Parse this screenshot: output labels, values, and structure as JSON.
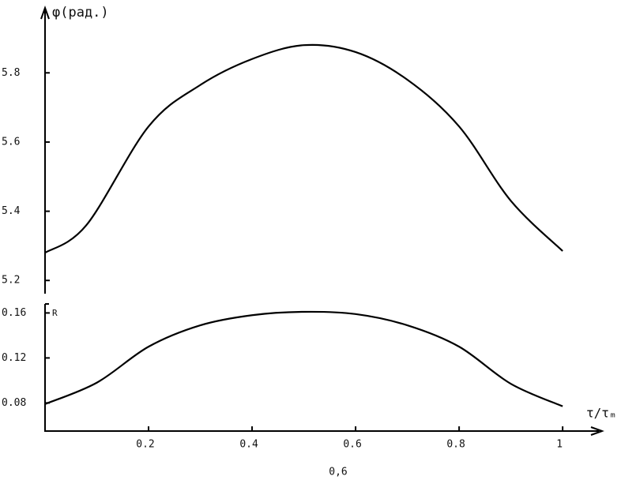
{
  "chart_data": [
    {
      "type": "line",
      "y_label": "φ(рад.)",
      "x": [
        0,
        0.08,
        0.2,
        0.3,
        0.4,
        0.5,
        0.6,
        0.7,
        0.8,
        0.9,
        1.0
      ],
      "values": [
        5.28,
        5.36,
        5.645,
        5.765,
        5.84,
        5.88,
        5.86,
        5.78,
        5.645,
        5.43,
        5.285
      ],
      "xlim": [
        0,
        1.07
      ],
      "ylim": [
        5.18,
        5.99
      ],
      "yticks": [
        5.2,
        5.4,
        5.6,
        5.8
      ],
      "color": "#000000"
    },
    {
      "type": "line",
      "y_label": "R",
      "x_label": "τ/τₘ",
      "caption": "0,6",
      "x": [
        0,
        0.1,
        0.2,
        0.3,
        0.4,
        0.5,
        0.6,
        0.7,
        0.8,
        0.9,
        1.0
      ],
      "values": [
        0.079,
        0.098,
        0.13,
        0.149,
        0.158,
        0.161,
        0.159,
        0.149,
        0.13,
        0.097,
        0.077
      ],
      "xlim": [
        0,
        1.07
      ],
      "xticks": [
        0.2,
        0.4,
        0.6,
        0.8,
        1
      ],
      "ylim": [
        0.055,
        0.168
      ],
      "yticks": [
        0.08,
        0.12,
        0.16
      ],
      "color": "#000000"
    }
  ]
}
